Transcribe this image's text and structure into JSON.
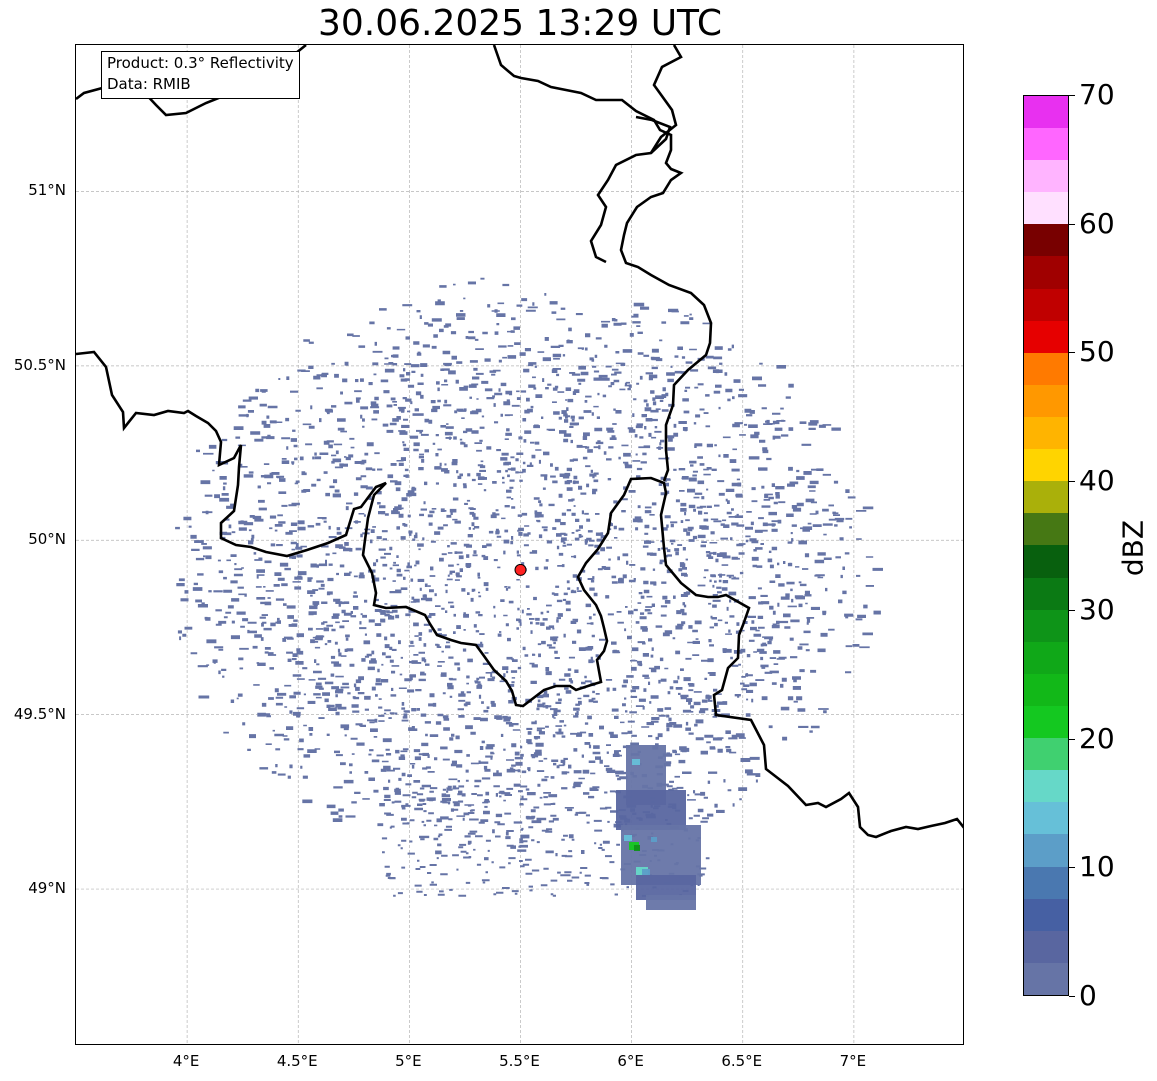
{
  "title": "30.06.2025 13:29 UTC",
  "info": {
    "product": "Product: 0.3° Reflectivity",
    "source": "Data: RMIB"
  },
  "map": {
    "projection": "lat-lon",
    "lon_range": [
      3.5,
      7.5
    ],
    "lat_range": [
      48.55,
      51.42
    ],
    "gridlines": true,
    "radar_site": {
      "lon": 5.5,
      "lat": 49.915,
      "color": "#ff2222"
    },
    "x_ticks": [
      {
        "value": 4.0,
        "label": "4°E"
      },
      {
        "value": 4.5,
        "label": "4.5°E"
      },
      {
        "value": 5.0,
        "label": "5°E"
      },
      {
        "value": 5.5,
        "label": "5.5°E"
      },
      {
        "value": 6.0,
        "label": "6°E"
      },
      {
        "value": 6.5,
        "label": "6.5°E"
      },
      {
        "value": 7.0,
        "label": "7°E"
      }
    ],
    "y_ticks": [
      {
        "value": 49.0,
        "label": "49°N"
      },
      {
        "value": 49.5,
        "label": "49.5°N"
      },
      {
        "value": 50.0,
        "label": "50°N"
      },
      {
        "value": 50.5,
        "label": "50.5°N"
      },
      {
        "value": 51.0,
        "label": "51°N"
      }
    ]
  },
  "colorbar": {
    "label": "dBZ",
    "min": 0,
    "max": 70,
    "step": 2.5,
    "tick_labels": [
      "0",
      "10",
      "20",
      "30",
      "40",
      "50",
      "60",
      "70"
    ],
    "colors": [
      "#6674a6",
      "#5966a0",
      "#4660a3",
      "#4a78b0",
      "#5c9ec8",
      "#66c0d8",
      "#66d8c8",
      "#40d070",
      "#14c820",
      "#12b818",
      "#10a818",
      "#0e9418",
      "#0b7a14",
      "#08600e",
      "#467814",
      "#aab00a",
      "#ffd400",
      "#ffb400",
      "#ff9800",
      "#ff7a00",
      "#e60000",
      "#c00000",
      "#a00000",
      "#780000",
      "#ffe0ff",
      "#ffb4ff",
      "#ff66ff",
      "#e830f0"
    ]
  }
}
